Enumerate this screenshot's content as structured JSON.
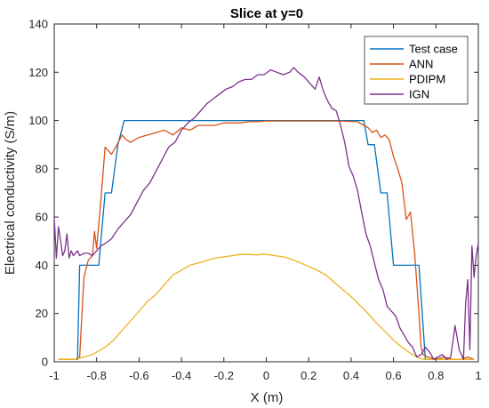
{
  "chart_data": {
    "type": "line",
    "title": "Slice at y=0",
    "xlabel": "X (m)",
    "ylabel": "Electrical conductivity (S/m)",
    "xlim": [
      -1,
      1
    ],
    "ylim": [
      0,
      140
    ],
    "xticks": [
      -1,
      -0.8,
      -0.6,
      -0.4,
      -0.2,
      0,
      0.2,
      0.4,
      0.6,
      0.8,
      1
    ],
    "xtick_labels": [
      "-1",
      "-0.8",
      "-0.6",
      "-0.4",
      "-0.2",
      "0",
      "0.2",
      "0.4",
      "0.6",
      "0.8",
      "1"
    ],
    "yticks": [
      0,
      20,
      40,
      60,
      80,
      100,
      120,
      140
    ],
    "ytick_labels": [
      "0",
      "20",
      "40",
      "60",
      "80",
      "100",
      "120",
      "140"
    ],
    "grid": false,
    "legend_position": "top-right",
    "series": [
      {
        "name": "Test case",
        "color": "#0072BD",
        "x": [
          -0.98,
          -0.91,
          -0.89,
          -0.88,
          -0.82,
          -0.79,
          -0.76,
          -0.73,
          -0.7,
          -0.67,
          0.0,
          0.46,
          0.48,
          0.51,
          0.54,
          0.57,
          0.6,
          0.63,
          0.66,
          0.69,
          0.72,
          0.75,
          0.98
        ],
        "y": [
          1,
          1,
          1,
          40,
          40,
          40,
          70,
          70,
          90,
          100,
          100,
          100,
          90,
          90,
          70,
          70,
          40,
          40,
          40,
          40,
          40,
          1,
          1
        ]
      },
      {
        "name": "ANN",
        "color": "#D95319",
        "x": [
          -0.98,
          -0.9,
          -0.88,
          -0.86,
          -0.84,
          -0.82,
          -0.81,
          -0.8,
          -0.78,
          -0.76,
          -0.73,
          -0.71,
          -0.68,
          -0.66,
          -0.64,
          -0.6,
          -0.56,
          -0.52,
          -0.48,
          -0.44,
          -0.4,
          -0.36,
          -0.32,
          -0.28,
          -0.24,
          -0.2,
          -0.16,
          -0.12,
          -0.08,
          -0.04,
          0.0,
          0.05,
          0.1,
          0.15,
          0.2,
          0.25,
          0.3,
          0.35,
          0.4,
          0.43,
          0.46,
          0.48,
          0.5,
          0.52,
          0.54,
          0.56,
          0.58,
          0.6,
          0.62,
          0.64,
          0.66,
          0.68,
          0.7,
          0.72,
          0.73,
          0.74,
          0.76,
          0.8,
          0.84,
          0.88,
          0.92,
          0.95,
          0.98
        ],
        "y": [
          1,
          1,
          2,
          35,
          42,
          44,
          54,
          47,
          67,
          89,
          86,
          89,
          94,
          92,
          91,
          93,
          94,
          95,
          96,
          94,
          97,
          96,
          98,
          98,
          98,
          99,
          99,
          99,
          99.5,
          99.5,
          99.8,
          99.8,
          99.8,
          99.8,
          99.8,
          99.8,
          99.8,
          99.8,
          99.6,
          99.5,
          98,
          97,
          95,
          96,
          93,
          94,
          92,
          85,
          80,
          74,
          59,
          62,
          45,
          20,
          6,
          3,
          2,
          1,
          2,
          1,
          1,
          2,
          1
        ]
      },
      {
        "name": "PDIPM",
        "color": "#EDB120",
        "x": [
          -0.98,
          -0.9,
          -0.86,
          -0.82,
          -0.8,
          -0.76,
          -0.72,
          -0.68,
          -0.64,
          -0.6,
          -0.56,
          -0.52,
          -0.48,
          -0.44,
          -0.4,
          -0.36,
          -0.32,
          -0.28,
          -0.24,
          -0.2,
          -0.16,
          -0.12,
          -0.08,
          -0.04,
          -0.02,
          0.0,
          0.04,
          0.08,
          0.12,
          0.16,
          0.2,
          0.24,
          0.28,
          0.32,
          0.36,
          0.4,
          0.44,
          0.48,
          0.52,
          0.56,
          0.6,
          0.64,
          0.68,
          0.72,
          0.74,
          0.78,
          0.82,
          0.86,
          0.9,
          0.94,
          0.98
        ],
        "y": [
          1,
          1,
          2,
          3,
          4,
          6,
          9,
          13,
          17,
          21,
          25,
          28,
          32,
          36,
          38,
          40,
          41,
          42,
          43,
          43.5,
          44,
          44.5,
          44.5,
          44.3,
          44.7,
          44.5,
          44,
          43.5,
          42.5,
          41,
          39.5,
          38,
          36,
          33,
          30,
          27,
          23.5,
          20,
          16,
          12.5,
          9,
          6,
          3.5,
          1.5,
          1,
          1,
          1,
          1,
          1,
          1,
          1
        ]
      },
      {
        "name": "IGN",
        "color": "#7E2F8E",
        "x": [
          -1.0,
          -0.99,
          -0.98,
          -0.97,
          -0.96,
          -0.95,
          -0.94,
          -0.93,
          -0.92,
          -0.91,
          -0.9,
          -0.89,
          -0.88,
          -0.86,
          -0.84,
          -0.82,
          -0.8,
          -0.78,
          -0.76,
          -0.73,
          -0.7,
          -0.67,
          -0.64,
          -0.61,
          -0.58,
          -0.55,
          -0.52,
          -0.49,
          -0.46,
          -0.43,
          -0.4,
          -0.37,
          -0.34,
          -0.31,
          -0.28,
          -0.25,
          -0.22,
          -0.19,
          -0.16,
          -0.13,
          -0.1,
          -0.07,
          -0.04,
          -0.01,
          0.02,
          0.05,
          0.08,
          0.11,
          0.13,
          0.15,
          0.18,
          0.21,
          0.23,
          0.25,
          0.27,
          0.29,
          0.31,
          0.33,
          0.35,
          0.37,
          0.39,
          0.41,
          0.43,
          0.45,
          0.47,
          0.49,
          0.51,
          0.53,
          0.55,
          0.57,
          0.59,
          0.61,
          0.63,
          0.65,
          0.67,
          0.69,
          0.71,
          0.73,
          0.75,
          0.77,
          0.79,
          0.81,
          0.83,
          0.85,
          0.87,
          0.89,
          0.91,
          0.93,
          0.94,
          0.95,
          0.96,
          0.97,
          0.98,
          0.99,
          1.0
        ],
        "y": [
          60,
          43,
          56,
          50,
          44,
          46,
          53,
          43,
          46,
          44,
          45,
          46,
          44,
          45,
          45,
          44,
          46,
          48,
          49,
          51,
          55,
          58,
          61,
          66,
          71,
          74,
          79,
          84,
          89,
          91,
          96,
          99,
          101,
          104,
          107,
          109,
          111,
          113,
          114,
          116,
          117,
          117,
          119,
          119,
          121,
          120,
          119,
          120,
          122,
          120,
          118,
          115,
          113,
          118,
          112,
          108,
          105,
          104,
          98,
          91,
          81,
          77,
          71,
          62,
          53,
          48,
          41,
          34,
          30,
          23,
          21,
          19,
          14,
          11,
          8,
          6,
          2,
          3,
          6,
          4,
          1,
          2,
          3,
          1,
          2,
          15,
          5,
          1,
          24,
          34,
          5,
          48,
          35,
          44,
          49
        ]
      }
    ]
  }
}
